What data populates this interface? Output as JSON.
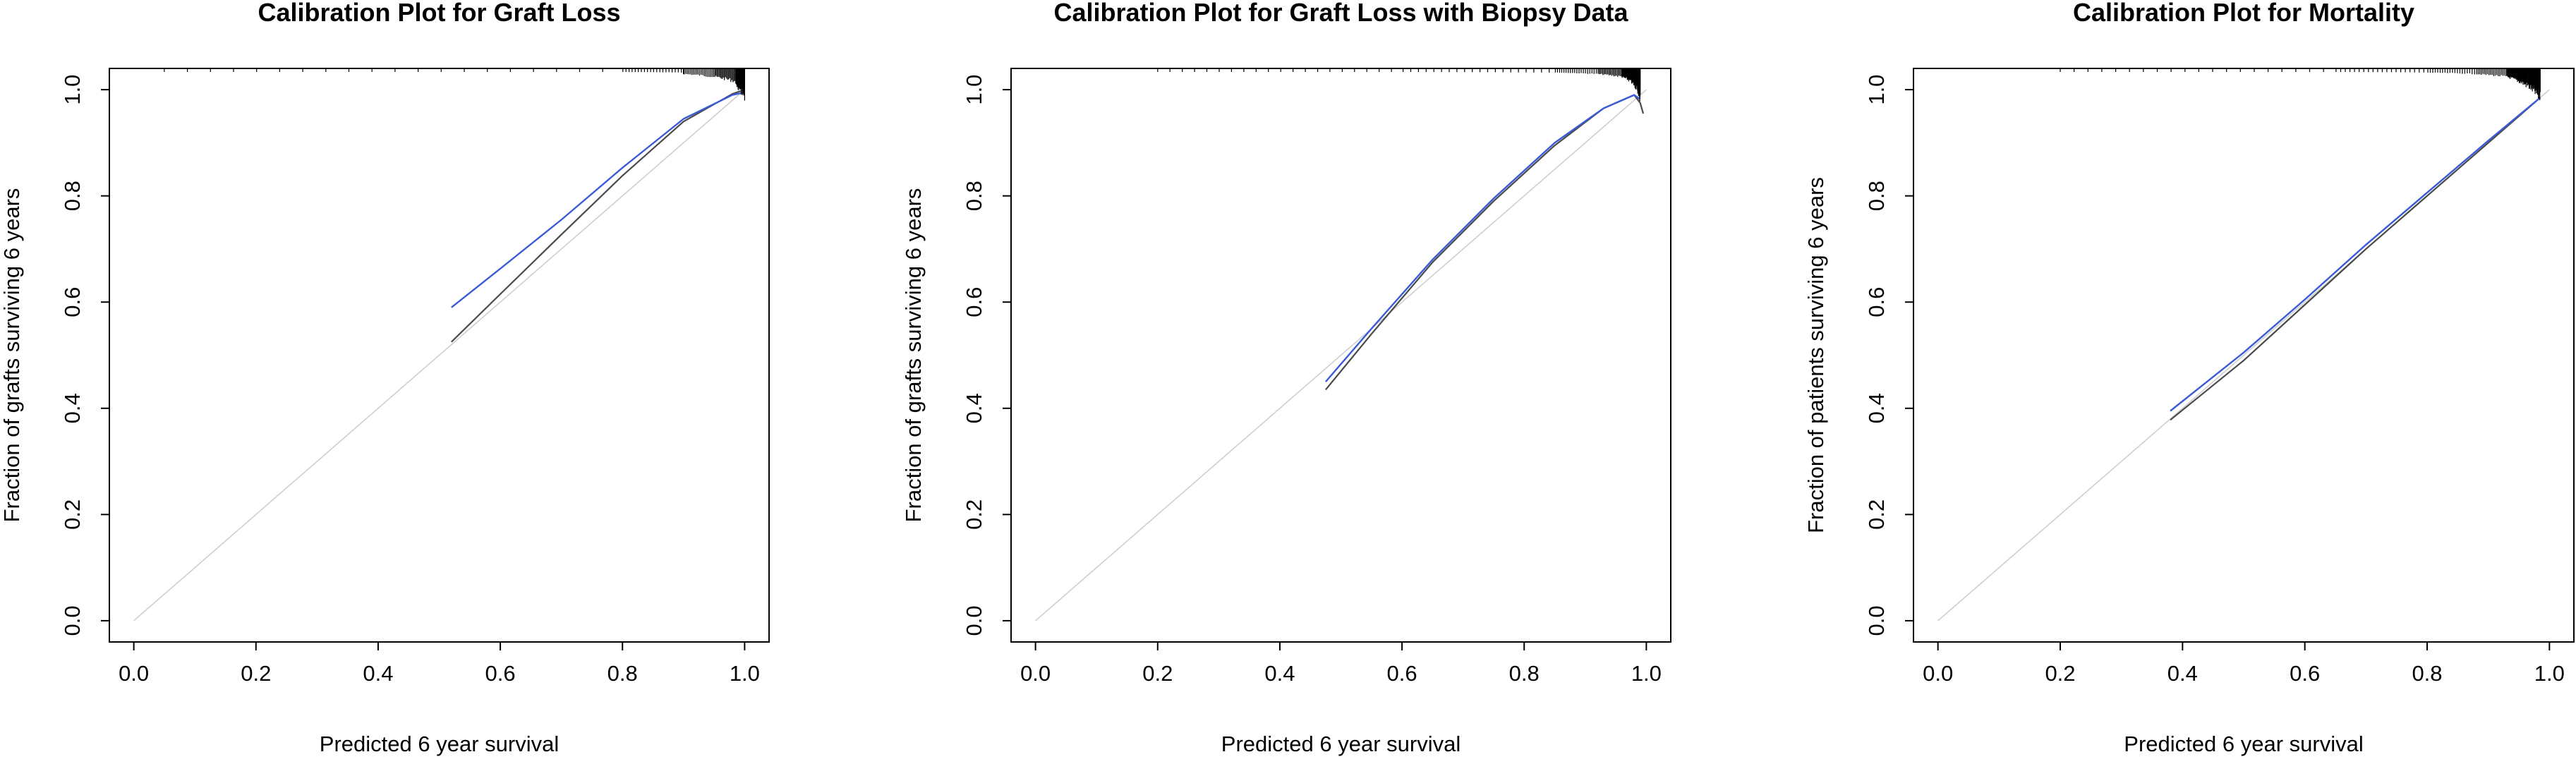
{
  "colors": {
    "ideal_line": "#cfcfcf",
    "apparent": "#4a4a4a",
    "bias_corrected": "#3a5bd9",
    "rug": "#000000",
    "frame": "#000000"
  },
  "chart_data": [
    {
      "type": "line",
      "title": "Calibration Plot for Graft Loss",
      "xlabel": "Predicted 6 year survival",
      "ylabel": "Fraction of grafts surviving 6 years",
      "xlim": [
        -0.04,
        1.04
      ],
      "ylim": [
        -0.04,
        1.04
      ],
      "xticks": [
        "0.0",
        "0.2",
        "0.4",
        "0.6",
        "0.8",
        "1.0"
      ],
      "yticks": [
        "0.0",
        "0.2",
        "0.4",
        "0.6",
        "0.8",
        "1.0"
      ],
      "grid": false,
      "legend": "none",
      "series": [
        {
          "x": [
            0.0,
            1.0
          ],
          "y": [
            0.0,
            1.0
          ]
        },
        {
          "x": [
            0.52,
            0.6,
            0.7,
            0.8,
            0.9,
            0.98,
            1.0
          ],
          "y": [
            0.525,
            0.615,
            0.727,
            0.838,
            0.94,
            0.992,
            1.0
          ]
        },
        {
          "x": [
            0.52,
            0.6,
            0.7,
            0.8,
            0.9,
            0.98,
            1.0
          ],
          "y": [
            0.59,
            0.663,
            0.755,
            0.853,
            0.945,
            0.99,
            0.995
          ]
        }
      ],
      "rug_density": [
        0.05,
        0.8,
        0.9,
        0.9,
        0.95,
        0.985,
        0.99,
        1.0
      ]
    },
    {
      "type": "line",
      "title": "Calibration Plot for Graft Loss with Biopsy Data",
      "xlabel": "Predicted 6 year survival",
      "ylabel": "Fraction of grafts surviving 6 years",
      "xlim": [
        -0.04,
        1.04
      ],
      "ylim": [
        -0.04,
        1.04
      ],
      "xticks": [
        "0.0",
        "0.2",
        "0.4",
        "0.6",
        "0.8",
        "1.0"
      ],
      "yticks": [
        "0.0",
        "0.2",
        "0.4",
        "0.6",
        "0.8",
        "1.0"
      ],
      "grid": false,
      "legend": "none",
      "series": [
        {
          "x": [
            0.0,
            1.0
          ],
          "y": [
            0.0,
            1.0
          ]
        },
        {
          "x": [
            0.475,
            0.55,
            0.65,
            0.75,
            0.85,
            0.93,
            0.98,
            0.99,
            0.995
          ],
          "y": [
            0.435,
            0.54,
            0.675,
            0.79,
            0.895,
            0.965,
            0.99,
            0.975,
            0.955
          ]
        },
        {
          "x": [
            0.475,
            0.55,
            0.65,
            0.75,
            0.85,
            0.93,
            0.98,
            0.99
          ],
          "y": [
            0.45,
            0.55,
            0.68,
            0.795,
            0.9,
            0.965,
            0.99,
            0.982
          ]
        }
      ],
      "rug_density": [
        0.2,
        0.6,
        0.85,
        0.92,
        0.96,
        0.975,
        0.985,
        0.99
      ]
    },
    {
      "type": "line",
      "title": "Calibration Plot for Mortality",
      "xlabel": "Predicted 6 year survival",
      "ylabel": "Fraction of patients surviving 6 years",
      "xlim": [
        -0.04,
        1.04
      ],
      "ylim": [
        -0.04,
        1.04
      ],
      "xticks": [
        "0.0",
        "0.2",
        "0.4",
        "0.6",
        "0.8",
        "1.0"
      ],
      "yticks": [
        "0.0",
        "0.2",
        "0.4",
        "0.6",
        "0.8",
        "1.0"
      ],
      "grid": false,
      "legend": "none",
      "series": [
        {
          "x": [
            0.0,
            1.0
          ],
          "y": [
            0.0,
            1.0
          ]
        },
        {
          "x": [
            0.38,
            0.5,
            0.6,
            0.7,
            0.8,
            0.9,
            0.985
          ],
          "y": [
            0.378,
            0.49,
            0.595,
            0.7,
            0.8,
            0.9,
            0.985
          ]
        },
        {
          "x": [
            0.38,
            0.5,
            0.6,
            0.7,
            0.8,
            0.9,
            0.985
          ],
          "y": [
            0.395,
            0.505,
            0.605,
            0.708,
            0.806,
            0.904,
            0.985
          ]
        }
      ],
      "rug_density": [
        0.2,
        0.65,
        0.8,
        0.88,
        0.93,
        0.95,
        0.97,
        0.985
      ]
    }
  ]
}
